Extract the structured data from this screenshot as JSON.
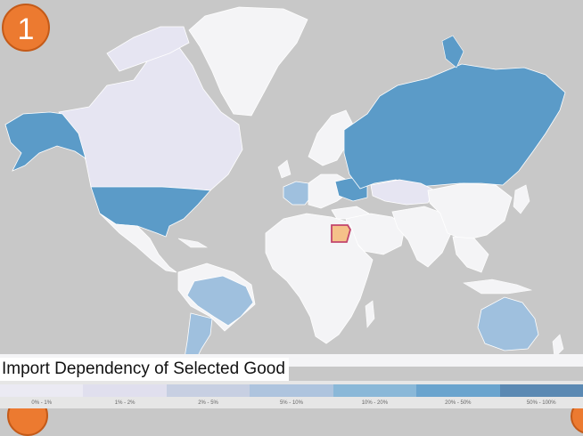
{
  "step": {
    "number": "1"
  },
  "legend": {
    "title": "Import Dependency of Selected Good",
    "bins": [
      {
        "label": "0% - 1%",
        "color": "#ebeaf3"
      },
      {
        "label": "1% - 2%",
        "color": "#e0dfee"
      },
      {
        "label": "2% - 5%",
        "color": "#c7cfe2"
      },
      {
        "label": "5% - 10%",
        "color": "#aec4de"
      },
      {
        "label": "10% - 20%",
        "color": "#8ab8d8"
      },
      {
        "label": "20% - 50%",
        "color": "#6aa4ce"
      },
      {
        "label": "50% - 100%",
        "color": "#5b89b3"
      }
    ]
  },
  "colors": {
    "ocean": "#c8c8c8",
    "no_data": "#f4f4f6",
    "high": "#5b9bc8",
    "mid": "#9fc0de",
    "low": "#e6e5f2",
    "selected": "#f5c189",
    "selected_border": "#c2456c"
  },
  "map": {
    "selected_country": "Egypt",
    "countries": [
      {
        "name": "Greenland",
        "level": "no_data"
      },
      {
        "name": "Canada",
        "level": "low"
      },
      {
        "name": "Alaska (USA)",
        "level": "high"
      },
      {
        "name": "United States",
        "level": "high"
      },
      {
        "name": "Mexico",
        "level": "no_data"
      },
      {
        "name": "Brazil",
        "level": "mid"
      },
      {
        "name": "Argentina",
        "level": "mid"
      },
      {
        "name": "Russia",
        "level": "high"
      },
      {
        "name": "Ukraine",
        "level": "high"
      },
      {
        "name": "Western Europe",
        "level": "mid"
      },
      {
        "name": "Kazakhstan",
        "level": "low"
      },
      {
        "name": "China",
        "level": "no_data"
      },
      {
        "name": "Australia",
        "level": "mid"
      },
      {
        "name": "Egypt",
        "level": "selected"
      }
    ]
  }
}
